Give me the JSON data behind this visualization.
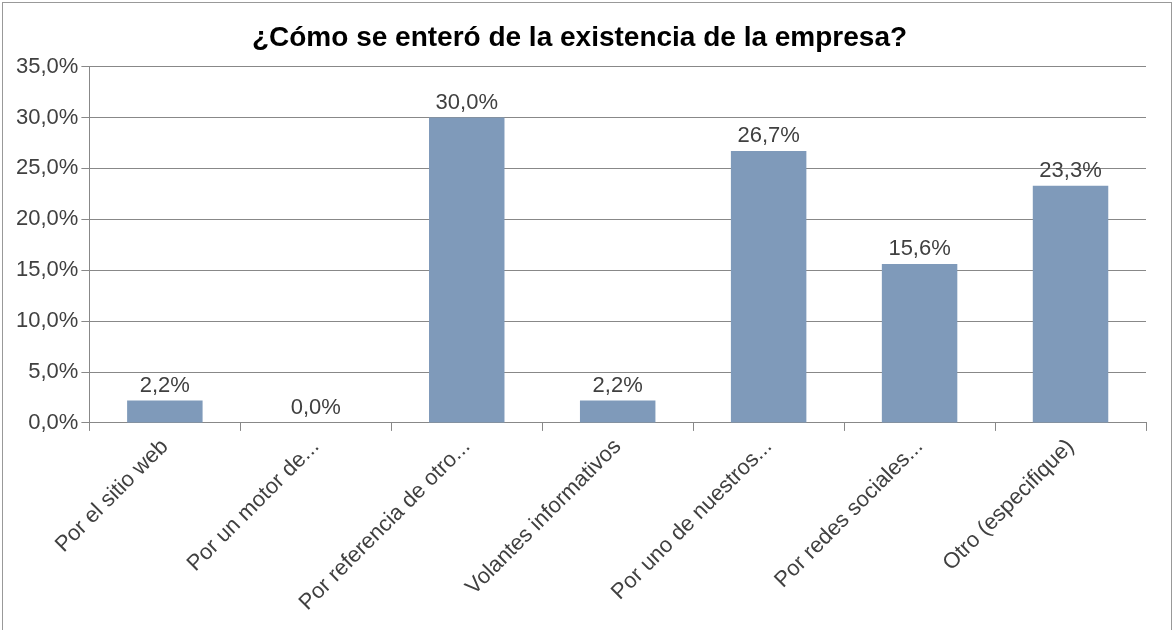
{
  "chart_data": {
    "type": "bar",
    "title": "¿Cómo se enteró de la existencia de la empresa?",
    "categories": [
      "Por el sitio web",
      "Por un motor de...",
      "Por referencia de otro...",
      "Volantes informativos",
      "Por uno de nuestros...",
      "Por redes sociales...",
      "Otro (especifique)"
    ],
    "values": [
      2.2,
      0,
      30,
      2.2,
      26.7,
      15.6,
      23.3
    ],
    "value_labels": [
      "2,2%",
      "0,0%",
      "30,0%",
      "2,2%",
      "26,7%",
      "15,6%",
      "23,3%"
    ],
    "color": "#7f9aba",
    "ylim": [
      0,
      35
    ],
    "yticks": [
      {
        "value": 0,
        "label": "0,0%"
      },
      {
        "value": 5,
        "label": "5,0%"
      },
      {
        "value": 10,
        "label": "10,0%"
      },
      {
        "value": 15,
        "label": "15,0%"
      },
      {
        "value": 20,
        "label": "20,0%"
      },
      {
        "value": 25,
        "label": "25,0%"
      },
      {
        "value": 30,
        "label": "30,0%"
      },
      {
        "value": 35,
        "label": "35,0%"
      }
    ],
    "grid": "y",
    "legend": false
  }
}
